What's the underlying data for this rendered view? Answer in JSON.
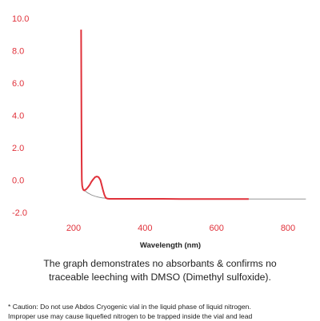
{
  "chart_data": {
    "type": "line",
    "xlabel": "Wavelength (nm)",
    "ylabel": "",
    "xlim": [
      190,
      860
    ],
    "ylim": [
      -2.0,
      10.0
    ],
    "x_ticks": [
      200,
      400,
      600,
      800
    ],
    "x_tick_labels": [
      "200",
      "400",
      "600",
      "800"
    ],
    "y_ticks": [
      10.0,
      8.0,
      6.0,
      4.0,
      2.0,
      0.0,
      -2.0
    ],
    "y_tick_labels": [
      "10.0",
      "8.0",
      "6.0",
      "4.0",
      "2.0",
      "0.0",
      "-2.0"
    ],
    "grid": false,
    "series": [
      {
        "color": "#e0313a",
        "x": [
          221,
          221.5,
          222,
          222.5,
          223,
          224,
          226,
          228,
          230,
          233,
          236,
          240,
          245,
          250,
          255,
          260,
          265,
          270,
          275,
          278,
          282,
          286,
          290,
          295,
          300,
          350,
          400,
          450,
          500,
          550,
          600,
          650,
          690
        ],
        "y": [
          9.3,
          6.5,
          3.5,
          1.2,
          0.0,
          -0.35,
          -0.55,
          -0.62,
          -0.64,
          -0.6,
          -0.55,
          -0.45,
          -0.3,
          -0.1,
          0.05,
          0.18,
          0.22,
          0.18,
          0.0,
          -0.25,
          -0.6,
          -0.9,
          -1.1,
          -1.15,
          -1.16,
          -1.16,
          -1.16,
          -1.16,
          -1.17,
          -1.17,
          -1.17,
          -1.17,
          -1.17
        ]
      },
      {
        "color": "#888888",
        "x": [
          223,
          224,
          226,
          228,
          230,
          235,
          240,
          245,
          250,
          260,
          270,
          280,
          290,
          300,
          320,
          350,
          400,
          500,
          600,
          700,
          800,
          850
        ],
        "y": [
          -0.05,
          -0.3,
          -0.5,
          -0.58,
          -0.63,
          -0.72,
          -0.8,
          -0.86,
          -0.92,
          -1.0,
          -1.06,
          -1.1,
          -1.12,
          -1.14,
          -1.15,
          -1.16,
          -1.16,
          -1.16,
          -1.17,
          -1.17,
          -1.17,
          -1.17
        ]
      }
    ]
  },
  "description": {
    "line1": "The graph demonstrates no absorbants & confirms no",
    "line2": "traceable leeching with DMSO (Dimethyl sulfoxide)."
  },
  "caution": {
    "line1": "* Caution: Do not use Abdos Cryogenic vial in the liquid phase of liquid nitrogen.",
    "line2": "Improper use may cause liquefied nitrogen to be trapped inside the vial and lead"
  }
}
